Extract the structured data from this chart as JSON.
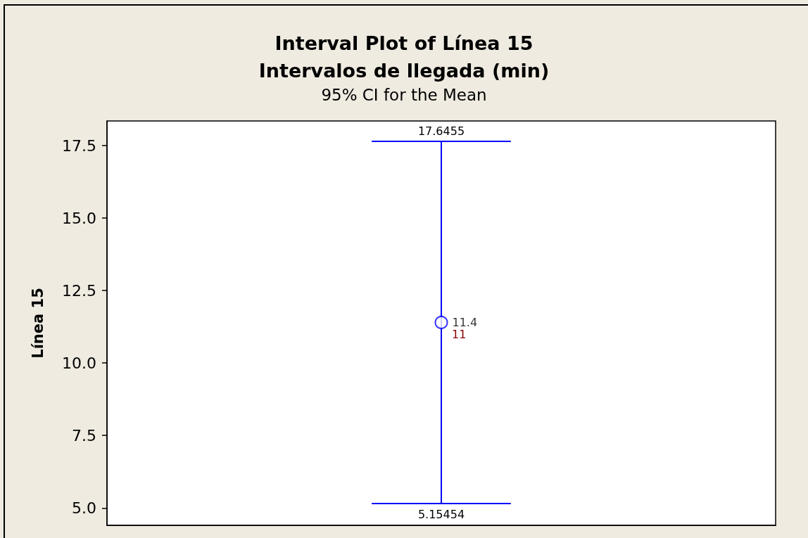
{
  "chart_data": {
    "type": "scatter",
    "title": "Interval Plot of Línea 15\nIntervalos de llegada (min)",
    "subtitle": "95% CI for the Mean",
    "ylabel": "Línea 15",
    "categories": [
      null
    ],
    "values": [
      11.4
    ],
    "errors": [
      [
        5.15454,
        17.6455
      ]
    ],
    "color": "#0000ff",
    "marker": "circle",
    "data_labels": true,
    "annotations": [
      {
        "text": "17.6455",
        "y": 17.6455
      },
      {
        "text": "5.15454",
        "y": 5.15454
      },
      "11"
    ],
    "ylim": [
      4.4,
      18.35
    ],
    "yticks": [
      {
        "value": 5,
        "label": "5.0"
      },
      7.5,
      {
        "value": 10,
        "label": "10.0"
      },
      12.5,
      {
        "value": 15,
        "label": "15.0"
      },
      17.5
    ],
    "tick_labels": "y"
  }
}
